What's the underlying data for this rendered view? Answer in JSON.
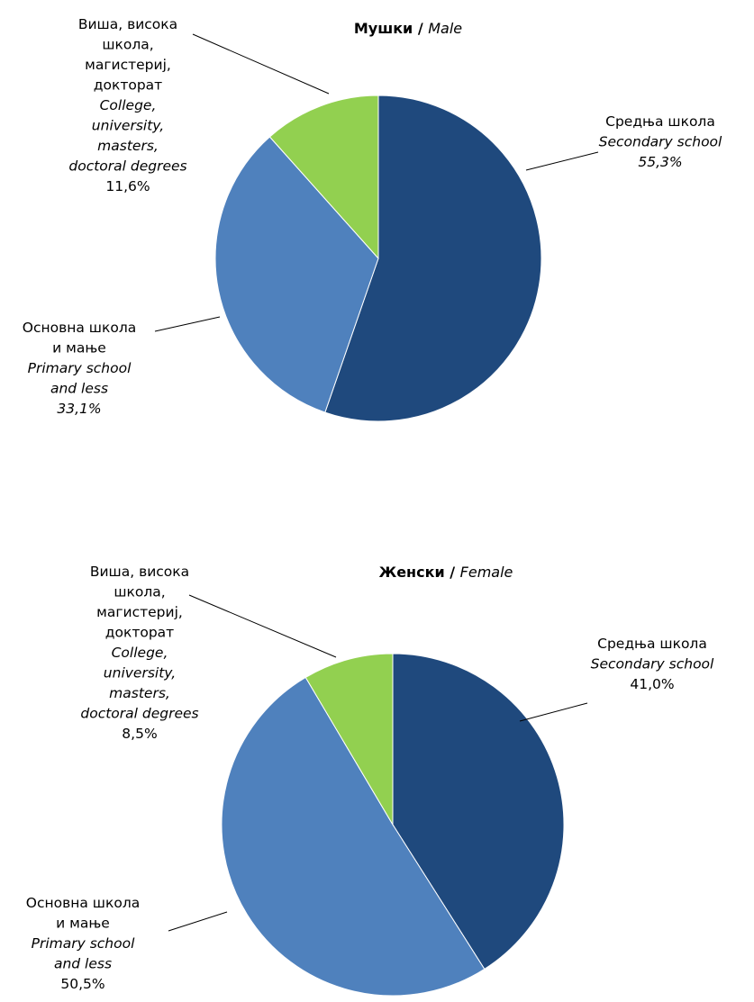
{
  "chart_data": [
    {
      "type": "pie",
      "title_sr": "Мушки",
      "title_sep": " / ",
      "title_en": "Male",
      "colors": [
        "#1F497D",
        "#4F81BD",
        "#92D050"
      ],
      "slices": [
        {
          "lines_sr": [
            "Средња школа"
          ],
          "lines_en": [
            "Secondary school"
          ],
          "value": 55.3,
          "value_label": "55,3%",
          "value_italic": true
        },
        {
          "lines_sr": [
            "Основна школа",
            "и мање"
          ],
          "lines_en": [
            "Primary school",
            "and less"
          ],
          "value": 33.1,
          "value_label": "33,1%",
          "value_italic": true
        },
        {
          "lines_sr": [
            "Виша, висока",
            "школа,",
            "магистериј,",
            "докторат"
          ],
          "lines_en": [
            "College,",
            "university,",
            "masters,",
            "doctoral degrees"
          ],
          "value": 11.6,
          "value_label": "11,6%",
          "value_italic": false
        }
      ]
    },
    {
      "type": "pie",
      "title_sr": "Женски",
      "title_sep": " / ",
      "title_en": "Female",
      "colors": [
        "#1F497D",
        "#4F81BD",
        "#92D050"
      ],
      "slices": [
        {
          "lines_sr": [
            "Средња школа"
          ],
          "lines_en": [
            "Secondary school"
          ],
          "value": 41.0,
          "value_label": "41,0%",
          "value_italic": false
        },
        {
          "lines_sr": [
            "Основна школа",
            "и мање"
          ],
          "lines_en": [
            "Primary school",
            "and less"
          ],
          "value": 50.5,
          "value_label": "50,5%",
          "value_italic": false
        },
        {
          "lines_sr": [
            "Виша, висока",
            "школа,",
            "магистериј,",
            "докторат"
          ],
          "lines_en": [
            "College,",
            "university,",
            "masters,",
            "doctoral degrees"
          ],
          "value": 8.5,
          "value_label": "8,5%",
          "value_italic": false
        }
      ]
    }
  ]
}
